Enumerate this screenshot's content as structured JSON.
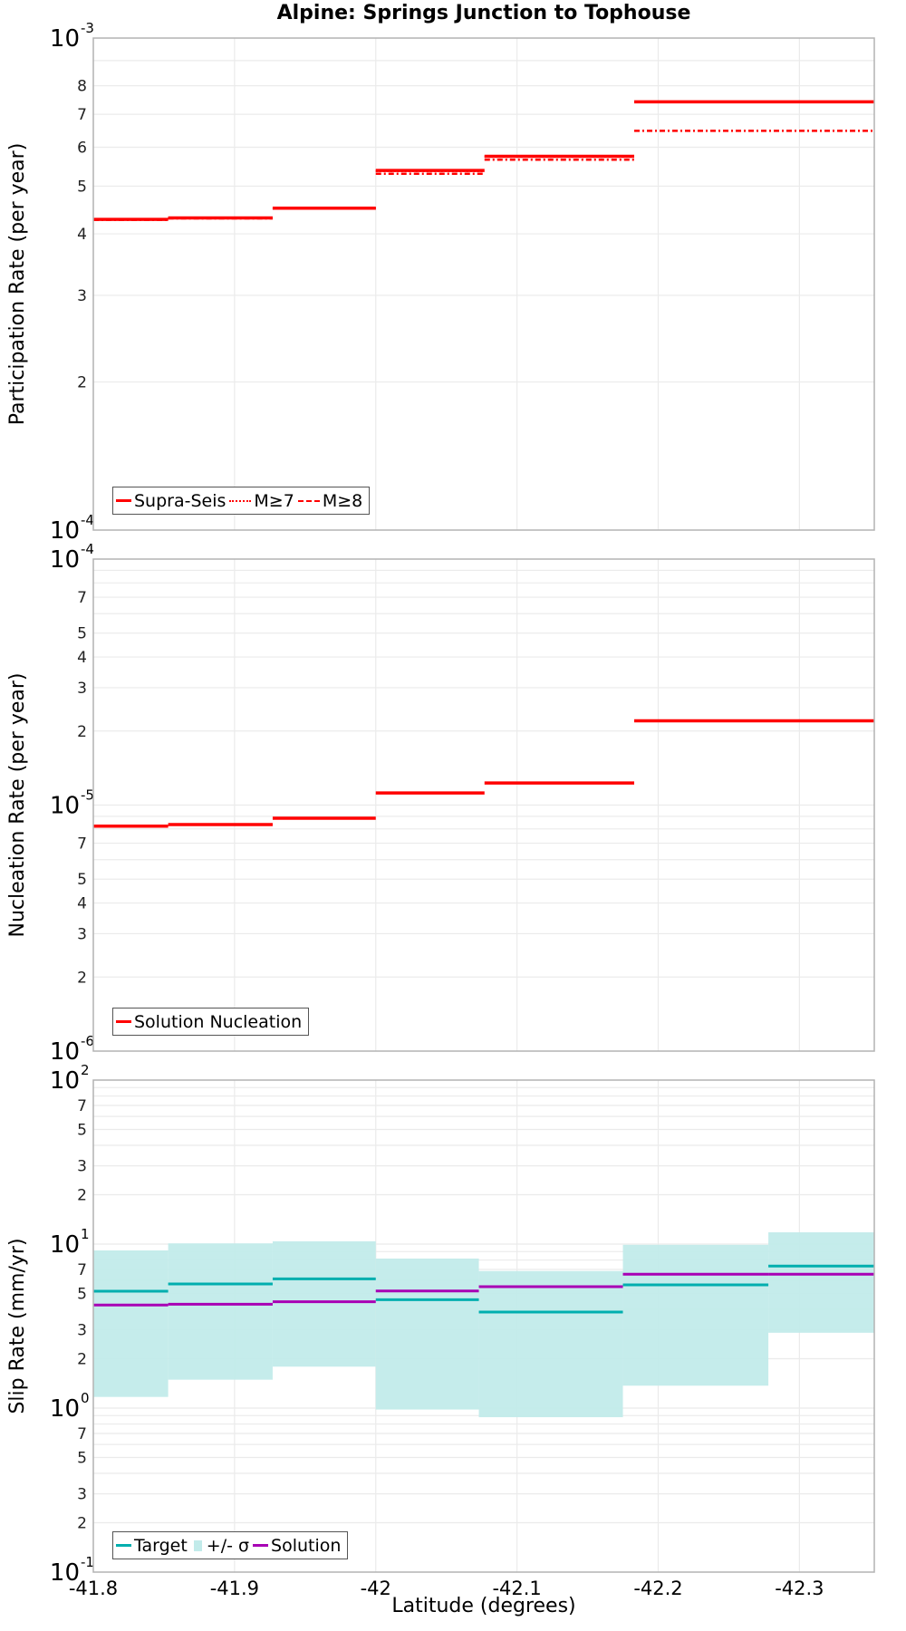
{
  "figure": {
    "title": "Alpine: Springs Junction to Tophouse",
    "xlabel": "Latitude (degrees)",
    "x_ticks": [
      "-41.8",
      "-41.9",
      "-42",
      "-42.1",
      "-42.2",
      "-42.3"
    ]
  },
  "colors": {
    "red": "#ff0000",
    "target": "#00aeae",
    "sigma": "#c2ebea",
    "solution": "#a800b4",
    "grid": "#ebebeb",
    "frame": "#b3b3b3"
  },
  "legends": {
    "participation": [
      {
        "label": "Supra-Seis",
        "style": "solid"
      },
      {
        "label": "M≥7",
        "style": "dotted"
      },
      {
        "label": "M≥8",
        "style": "dashdot"
      }
    ],
    "nucleation": [
      {
        "label": "Solution Nucleation",
        "style": "solid"
      }
    ],
    "slip": [
      {
        "label": "Target",
        "style": "target"
      },
      {
        "label": "+/- σ",
        "style": "sigma"
      },
      {
        "label": "Solution",
        "style": "solution"
      }
    ]
  },
  "chart_data": [
    {
      "type": "line",
      "title": "Alpine: Springs Junction to Tophouse",
      "xlabel": "Latitude (degrees)",
      "ylabel": "Participation Rate (per year)",
      "yscale": "log",
      "xlim": [
        -41.8,
        -42.353
      ],
      "ylim": [
        0.0001,
        0.001
      ],
      "y_tick_labels": [
        "10^-4",
        "2",
        "3",
        "4",
        "5",
        "6",
        "7",
        "8",
        "10^-3"
      ],
      "legend_position": "lower left",
      "grid": true,
      "segments_x": [
        [
          -41.8,
          -41.853
        ],
        [
          -41.853,
          -41.927
        ],
        [
          -41.927,
          -42.0
        ],
        [
          -42.0,
          -42.077
        ],
        [
          -42.077,
          -42.183
        ],
        [
          -42.183,
          -42.353
        ]
      ],
      "series": [
        {
          "name": "Supra-Seis",
          "style": "solid",
          "values": [
            0.000428,
            0.000431,
            0.000451,
            0.000538,
            0.000575,
            0.000742
          ]
        },
        {
          "name": "M≥7",
          "style": "dotted",
          "values": [
            0.000428,
            0.000431,
            0.000451,
            0.000537,
            0.000574,
            0.000741
          ]
        },
        {
          "name": "M≥8",
          "style": "dashdot",
          "values": [
            0.000427,
            0.00043,
            0.00045,
            0.00053,
            0.000566,
            0.000648
          ]
        }
      ]
    },
    {
      "type": "line",
      "ylabel": "Nucleation Rate (per year)",
      "xlabel": "Latitude (degrees)",
      "yscale": "log",
      "xlim": [
        -41.8,
        -42.353
      ],
      "ylim": [
        1e-06,
        0.0001
      ],
      "y_tick_labels": [
        "10^-6",
        "2",
        "3",
        "4",
        "5",
        "7",
        "10^-5",
        "2",
        "3",
        "4",
        "5",
        "7",
        "10^-4"
      ],
      "legend_position": "lower left",
      "grid": true,
      "segments_x": [
        [
          -41.8,
          -41.853
        ],
        [
          -41.853,
          -41.927
        ],
        [
          -41.927,
          -42.0
        ],
        [
          -42.0,
          -42.077
        ],
        [
          -42.077,
          -42.183
        ],
        [
          -42.183,
          -42.353
        ]
      ],
      "series": [
        {
          "name": "Solution Nucleation",
          "style": "solid",
          "values": [
            8.21e-06,
            8.33e-06,
            8.84e-06,
            1.12e-05,
            1.23e-05,
            2.2e-05
          ]
        }
      ]
    },
    {
      "type": "line",
      "ylabel": "Slip Rate (mm/yr)",
      "xlabel": "Latitude (degrees)",
      "yscale": "log",
      "xlim": [
        -41.8,
        -42.353
      ],
      "ylim": [
        0.1,
        100
      ],
      "y_tick_labels": [
        "10^-1",
        "2",
        "3",
        "5",
        "7",
        "10^0",
        "2",
        "3",
        "5",
        "7",
        "10^1",
        "2",
        "3",
        "5",
        "7",
        "10^2"
      ],
      "legend_position": "lower left",
      "grid": true,
      "segments_x": [
        [
          -41.8,
          -41.853
        ],
        [
          -41.853,
          -41.927
        ],
        [
          -41.927,
          -42.0
        ],
        [
          -42.0,
          -42.073
        ],
        [
          -42.073,
          -42.175
        ],
        [
          -42.175,
          -42.278
        ],
        [
          -42.278,
          -42.353
        ]
      ],
      "series": [
        {
          "name": "Target",
          "style": "target",
          "values": [
            5.16,
            5.71,
            6.14,
            4.58,
            3.85,
            5.64,
            7.34
          ]
        },
        {
          "name": "+/- σ upper",
          "style": "sigma",
          "values": [
            9.15,
            10.1,
            10.4,
            8.16,
            6.85,
            9.9,
            11.8
          ]
        },
        {
          "name": "+/- σ lower",
          "style": "sigma",
          "values": [
            1.17,
            1.49,
            1.79,
            0.98,
            0.88,
            1.37,
            2.88
          ]
        },
        {
          "name": "Solution",
          "style": "solution",
          "values": [
            4.25,
            4.3,
            4.45,
            5.18,
            5.5,
            6.55,
            6.55
          ]
        }
      ]
    }
  ]
}
